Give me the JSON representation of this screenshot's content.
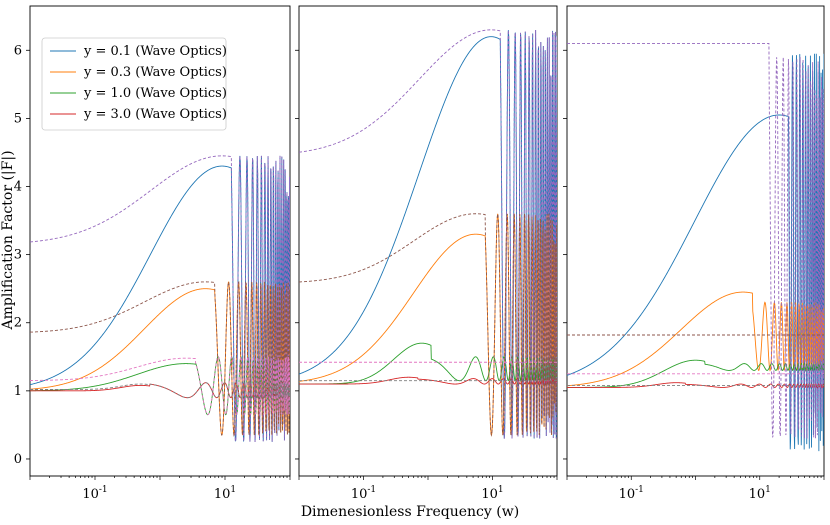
{
  "chart_data": {
    "type": "line",
    "xlabel": "Dimenesionless Frequency (w)",
    "ylabel": "Amplification Factor (|F|)",
    "xscale": "log",
    "xlim": [
      0.01,
      100
    ],
    "ylim": [
      -0.25,
      6.65
    ],
    "x_tick_base": "10",
    "x_ticks": [
      {
        "exp": "-1",
        "value": 0.1
      },
      {
        "exp": "1",
        "value": 10
      }
    ],
    "y_ticks": [
      "0",
      "1",
      "2",
      "3",
      "4",
      "5",
      "6"
    ],
    "legend": {
      "position": "upper-left",
      "panel": 1,
      "entries": [
        {
          "label": "y = 0.1 (Wave Optics)",
          "color": "#1f77b4"
        },
        {
          "label": "y = 0.3 (Wave Optics)",
          "color": "#ff7f0e"
        },
        {
          "label": "y = 1.0 (Wave Optics)",
          "color": "#2ca02c"
        },
        {
          "label": "y = 3.0 (Wave Optics)",
          "color": "#d62728"
        }
      ]
    },
    "colors": {
      "y01": "#1f77b4",
      "y03": "#ff7f0e",
      "y10": "#2ca02c",
      "y30": "#d62728",
      "approx_purple": "#9467bd",
      "approx_brown": "#8c564b",
      "approx_pink": "#e377c2",
      "approx_gray": "#7f7f7f"
    },
    "panels": [
      {
        "name": "panel-1",
        "series": [
          {
            "name": "y = 0.1 (Wave Optics)",
            "color": "#1f77b4",
            "style": "solid",
            "base": 1.0,
            "peak": 4.3,
            "peak_w": 9,
            "osc_low": 0.25,
            "osc_high": 4.45
          },
          {
            "name": "y = 0.3 (Wave Optics)",
            "color": "#ff7f0e",
            "style": "solid",
            "base": 1.0,
            "peak": 2.5,
            "peak_w": 5,
            "osc_low": 0.35,
            "osc_high": 2.6
          },
          {
            "name": "y = 1.0 (Wave Optics)",
            "color": "#2ca02c",
            "style": "solid",
            "base": 1.0,
            "peak": 1.4,
            "peak_w": 2.5,
            "osc_low": 0.65,
            "osc_high": 1.5
          },
          {
            "name": "y = 3.0 (Wave Optics)",
            "color": "#d62728",
            "style": "solid",
            "base": 1.0,
            "peak": 1.08,
            "peak_w": 0.5,
            "osc_low": 0.9,
            "osc_high": 1.12
          },
          {
            "name": "approx purple",
            "color": "#9467bd",
            "style": "dashed",
            "base": 3.15,
            "peak": 4.45,
            "peak_w": 9,
            "osc_low": 0.25,
            "osc_high": 4.45
          },
          {
            "name": "approx brown",
            "color": "#8c564b",
            "style": "dashed",
            "base": 1.85,
            "peak": 2.6,
            "peak_w": 5,
            "osc_low": 0.35,
            "osc_high": 2.6
          },
          {
            "name": "approx pink",
            "color": "#e377c2",
            "style": "dashed",
            "base": 1.15,
            "peak": 1.48,
            "peak_w": 2.5,
            "osc_low": 0.65,
            "osc_high": 1.5
          },
          {
            "name": "approx gray",
            "color": "#7f7f7f",
            "style": "dashed",
            "base": 1.02,
            "peak": 1.1,
            "peak_w": 0.5,
            "osc_low": 0.9,
            "osc_high": 1.12
          }
        ]
      },
      {
        "name": "panel-2",
        "series": [
          {
            "name": "y = 0.1 (Wave Optics)",
            "color": "#1f77b4",
            "style": "solid",
            "base": 1.1,
            "peak": 6.2,
            "peak_w": 9.5,
            "osc_low": 0.3,
            "osc_high": 6.3
          },
          {
            "name": "y = 0.3 (Wave Optics)",
            "color": "#ff7f0e",
            "style": "solid",
            "base": 1.1,
            "peak": 3.3,
            "peak_w": 5.5,
            "osc_low": 0.35,
            "osc_high": 3.6
          },
          {
            "name": "y = 1.0 (Wave Optics)",
            "color": "#2ca02c",
            "style": "solid",
            "base": 1.1,
            "peak": 1.7,
            "peak_w": 0.8,
            "osc_low": 1.15,
            "osc_high": 1.5
          },
          {
            "name": "y = 3.0 (Wave Optics)",
            "color": "#d62728",
            "style": "solid",
            "base": 1.1,
            "peak": 1.2,
            "peak_w": 0.5,
            "osc_low": 1.1,
            "osc_high": 1.18
          },
          {
            "name": "approx purple",
            "color": "#9467bd",
            "style": "dashed",
            "base": 4.45,
            "peak": 6.3,
            "peak_w": 9.5,
            "osc_low": 0.3,
            "osc_high": 6.3
          },
          {
            "name": "approx brown",
            "color": "#8c564b",
            "style": "dashed",
            "base": 2.58,
            "peak": 3.6,
            "peak_w": 5.5,
            "osc_low": 0.35,
            "osc_high": 3.6
          },
          {
            "name": "approx pink",
            "color": "#e377c2",
            "style": "dashed",
            "base": 1.42,
            "peak": 1.42,
            "peak_w": 5,
            "osc_low": 1.42,
            "osc_high": 1.42
          },
          {
            "name": "approx gray",
            "color": "#7f7f7f",
            "style": "dashed",
            "base": 1.15,
            "peak": 1.15,
            "peak_w": 5,
            "osc_low": 1.15,
            "osc_high": 1.15
          }
        ]
      },
      {
        "name": "panel-3",
        "series": [
          {
            "name": "y = 0.1 (Wave Optics)",
            "color": "#1f77b4",
            "style": "solid",
            "base": 1.05,
            "peak": 5.05,
            "peak_w": 20,
            "osc_low": 0.1,
            "osc_high": 5.95
          },
          {
            "name": "y = 0.3 (Wave Optics)",
            "color": "#ff7f0e",
            "style": "solid",
            "base": 1.05,
            "peak": 2.45,
            "peak_w": 5.5,
            "osc_low": 1.3,
            "osc_high": 2.3
          },
          {
            "name": "y = 1.0 (Wave Optics)",
            "color": "#2ca02c",
            "style": "solid",
            "base": 1.05,
            "peak": 1.45,
            "peak_w": 1,
            "osc_low": 1.3,
            "osc_high": 1.4
          },
          {
            "name": "y = 3.0 (Wave Optics)",
            "color": "#d62728",
            "style": "solid",
            "base": 1.05,
            "peak": 1.12,
            "peak_w": 0.5,
            "osc_low": 1.05,
            "osc_high": 1.1
          },
          {
            "name": "approx purple",
            "color": "#9467bd",
            "style": "dashed",
            "base": 6.1,
            "peak": 6.1,
            "peak_w": 10,
            "osc_low": 0.3,
            "osc_high": 5.9
          },
          {
            "name": "approx brown",
            "color": "#8c564b",
            "style": "dashed",
            "base": 1.82,
            "peak": 1.82,
            "peak_w": 10,
            "osc_low": 1.82,
            "osc_high": 1.82
          },
          {
            "name": "approx pink",
            "color": "#e377c2",
            "style": "dashed",
            "base": 1.25,
            "peak": 1.25,
            "peak_w": 10,
            "osc_low": 1.25,
            "osc_high": 1.25
          },
          {
            "name": "approx gray",
            "color": "#7f7f7f",
            "style": "dashed",
            "base": 1.08,
            "peak": 1.08,
            "peak_w": 10,
            "osc_low": 1.08,
            "osc_high": 1.08
          }
        ]
      }
    ]
  }
}
